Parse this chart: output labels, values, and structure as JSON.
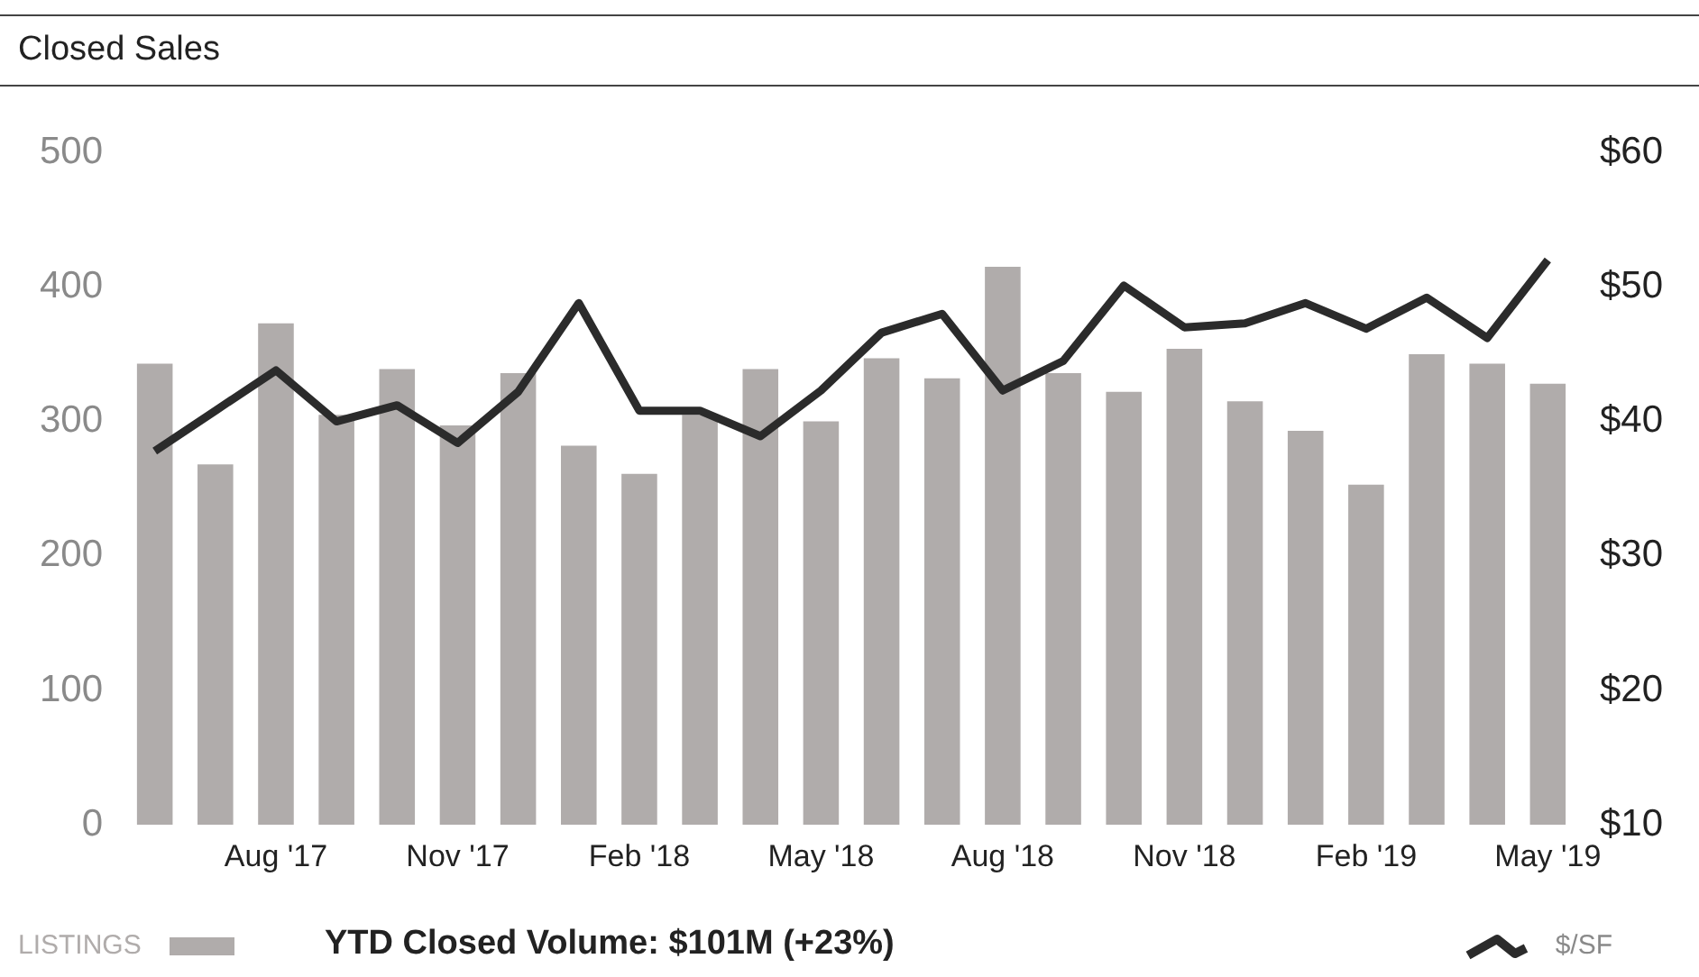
{
  "chart_data": {
    "type": "bar",
    "title": "Closed Sales",
    "categories": [
      null,
      null,
      "Aug '17",
      null,
      null,
      "Nov '17",
      null,
      null,
      "Feb '18",
      null,
      null,
      "May '18",
      null,
      null,
      "Aug '18",
      null,
      null,
      "Nov '18",
      null,
      null,
      "Feb '19",
      null,
      null,
      "May '19"
    ],
    "series": [
      {
        "name": "LISTINGS",
        "color": "#b0acab",
        "values": [
          343,
          268,
          373,
          305,
          339,
          297,
          336,
          282,
          261,
          305,
          339,
          300,
          347,
          332,
          415,
          336,
          322,
          354,
          315,
          293,
          253,
          350,
          343,
          328
        ]
      },
      {
        "name": "$/SF",
        "type": "line",
        "axis": "y2",
        "color": "#2b2b2b",
        "values": [
          37.8,
          40.8,
          43.8,
          40.0,
          41.2,
          38.4,
          42.2,
          48.8,
          40.8,
          40.8,
          38.9,
          42.3,
          46.6,
          48.0,
          42.3,
          44.5,
          50.1,
          47.0,
          47.3,
          48.8,
          46.9,
          49.2,
          46.2,
          52.0
        ]
      }
    ],
    "ylim": [
      0,
      500
    ],
    "yticks": [
      0,
      100,
      200,
      300,
      400,
      500
    ],
    "y2lim": [
      10,
      60
    ],
    "y2ticks": [
      {
        "value": 10,
        "label": "$10"
      },
      {
        "value": 20,
        "label": "$20"
      },
      {
        "value": 30,
        "label": "$30"
      },
      {
        "value": 40,
        "label": "$40"
      },
      {
        "value": 50,
        "label": "$50"
      },
      {
        "value": 60,
        "label": "$60"
      }
    ],
    "annotations": [
      "YTD Closed Volume:  $101M (+23%)"
    ],
    "grid": false,
    "legend": "bottom",
    "marker": "none",
    "line_style": "solid"
  }
}
